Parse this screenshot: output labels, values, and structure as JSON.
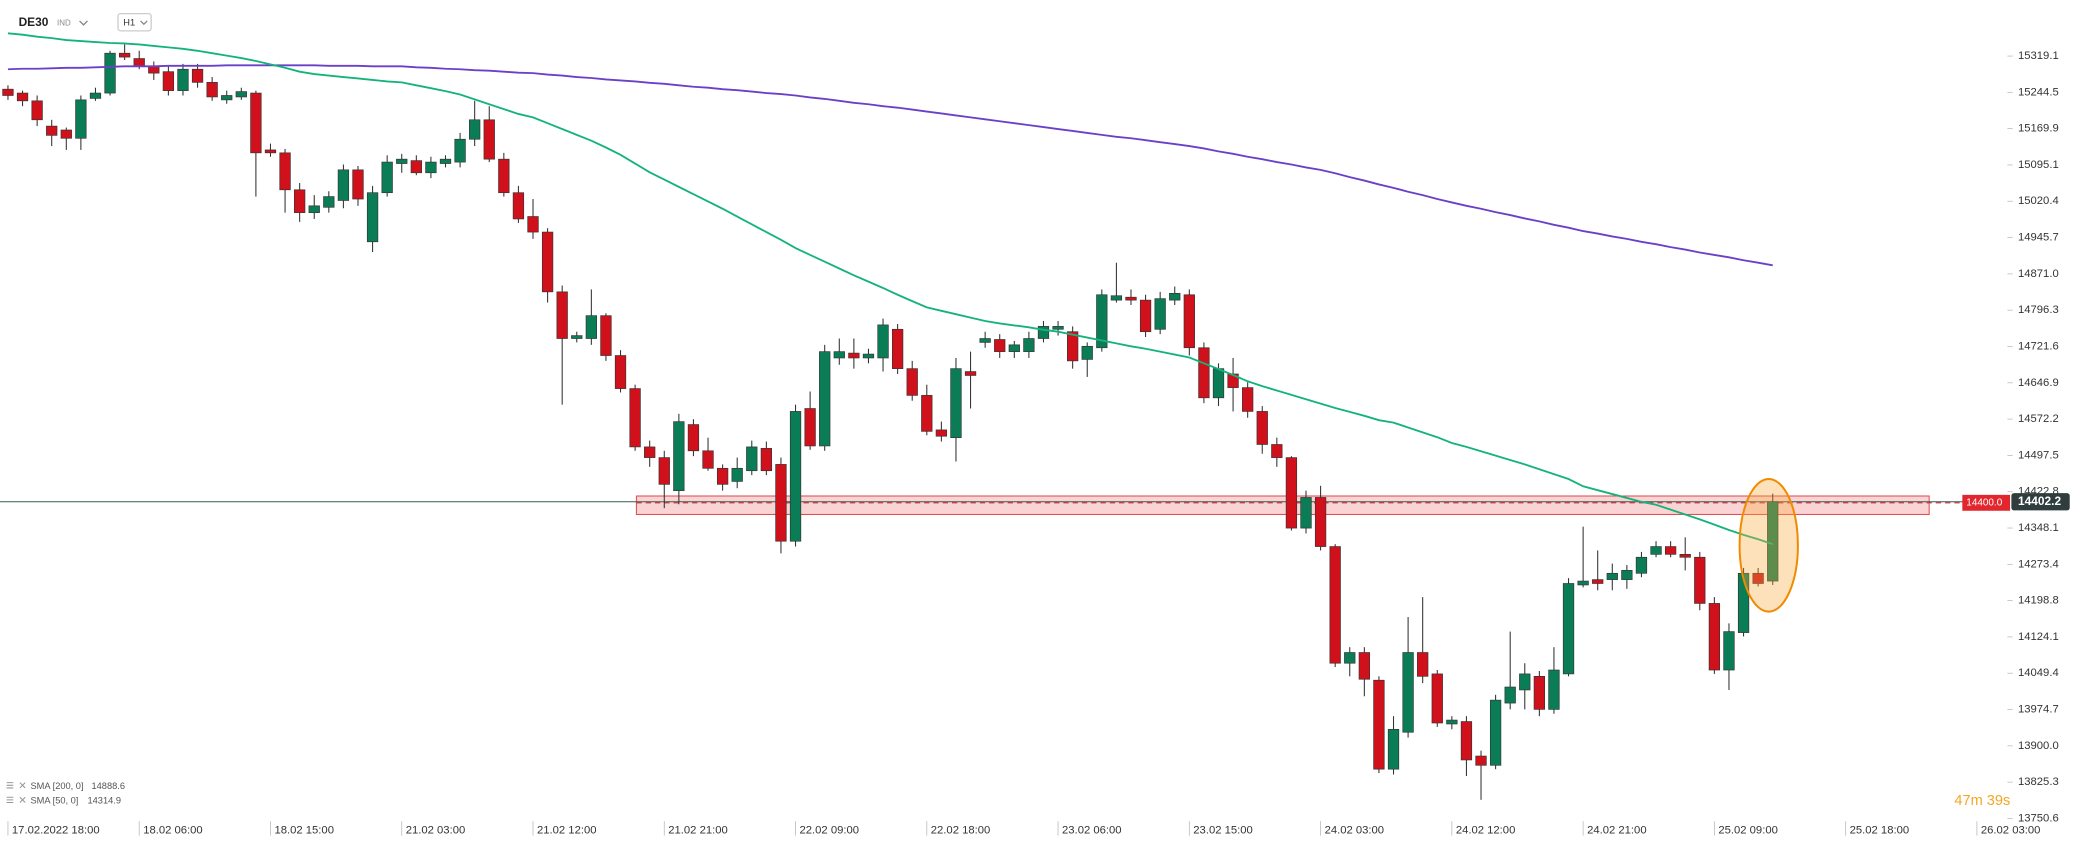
{
  "header": {
    "symbol": "DE30",
    "market": "IND",
    "interval": "H1"
  },
  "chart_data": {
    "type": "candlestick",
    "categories": [
      "17.02.2022 18:00",
      null,
      null,
      null,
      null,
      null,
      null,
      null,
      null,
      "18.02 06:00",
      null,
      null,
      null,
      null,
      null,
      null,
      null,
      null,
      "18.02 15:00",
      null,
      null,
      null,
      null,
      null,
      null,
      null,
      null,
      "21.02 03:00",
      null,
      null,
      null,
      null,
      null,
      null,
      null,
      null,
      "21.02 12:00",
      null,
      null,
      null,
      null,
      null,
      null,
      null,
      null,
      "21.02 21:00",
      null,
      null,
      null,
      null,
      null,
      null,
      null,
      null,
      "22.02 09:00",
      null,
      null,
      null,
      null,
      null,
      null,
      null,
      null,
      "22.02 18:00",
      null,
      null,
      null,
      null,
      null,
      null,
      null,
      null,
      "23.02 06:00",
      null,
      null,
      null,
      null,
      null,
      null,
      null,
      null,
      "23.02 15:00",
      null,
      null,
      null,
      null,
      null,
      null,
      null,
      null,
      "24.02 03:00",
      null,
      null,
      null,
      null,
      null,
      null,
      null,
      null,
      "24.02 12:00",
      null,
      null,
      null,
      null,
      null,
      null,
      null,
      null,
      "24.02 21:00",
      null,
      null,
      null,
      null,
      null,
      null,
      null,
      null,
      "25.02 09:00",
      null,
      null,
      null,
      null,
      null,
      null,
      null,
      null,
      "25.02 18:00",
      null,
      null,
      null,
      null,
      null,
      null,
      null,
      null,
      "26.02 03:00"
    ],
    "open": [
      15251,
      15243,
      15227,
      15175,
      15167,
      15150,
      15232,
      15243,
      15325,
      15314,
      15298,
      15287,
      15248,
      15292,
      15265,
      15229,
      15235,
      15243,
      15126,
      15120,
      15044,
      14997,
      15008,
      15022,
      15085,
      14937,
      15038,
      15098,
      15104,
      15079,
      15098,
      15101,
      15148,
      15188,
      15107,
      15038,
      14989,
      14957,
      14834,
      14738,
      14738,
      14785,
      14703,
      14635,
      14515,
      14493,
      14425,
      14561,
      14507,
      14471,
      14444,
      14466,
      14512,
      14479,
      14321,
      14594,
      14517,
      14698,
      14708,
      14698,
      14698,
      14757,
      14676,
      14621,
      14550,
      14534,
      14670,
      14730,
      14736,
      14711,
      14711,
      14738,
      14757,
      14752,
      14695,
      14719,
      14817,
      14823,
      14817,
      14757,
      14817,
      14828,
      14719,
      14616,
      14665,
      14637,
      14588,
      14520,
      14493,
      14348,
      14411,
      14310,
      14070,
      14092,
      14035,
      13852,
      13928,
      14092,
      14048,
      13945,
      13950,
      13879,
      13860,
      13988,
      14015,
      14043,
      13975,
      14048,
      14231,
      14242,
      14242,
      14242,
      14255,
      14294,
      14310,
      14294,
      14288,
      14193,
      14056,
      14133,
      14255,
      14239,
      null,
      null,
      null,
      null,
      null,
      null,
      null,
      null,
      null,
      null,
      null,
      null,
      null,
      null
    ],
    "high": [
      15259,
      15248,
      15238,
      15188,
      15172,
      15238,
      15254,
      15330,
      15347,
      15330,
      15308,
      15298,
      15303,
      15303,
      15276,
      15248,
      15254,
      15248,
      15139,
      15128,
      15058,
      15033,
      15041,
      15096,
      15093,
      15052,
      15115,
      15118,
      15115,
      15112,
      15115,
      15161,
      15227,
      15216,
      15120,
      15052,
      15025,
      14965,
      14847,
      14752,
      14839,
      14790,
      14714,
      14643,
      14528,
      14507,
      14583,
      14572,
      14534,
      14479,
      14493,
      14528,
      14526,
      14493,
      14602,
      14629,
      14725,
      14738,
      14738,
      14717,
      14779,
      14768,
      14692,
      14643,
      14567,
      14698,
      14711,
      14752,
      14747,
      14733,
      14752,
      14774,
      14774,
      14763,
      14730,
      14839,
      14894,
      14839,
      14828,
      14834,
      14845,
      14839,
      14730,
      14687,
      14698,
      14648,
      14599,
      14534,
      14496,
      14425,
      14435,
      14315,
      14103,
      14103,
      14043,
      13961,
      14165,
      14206,
      14056,
      13961,
      13961,
      13890,
      14005,
      14135,
      14070,
      14054,
      14103,
      14245,
      14351,
      14302,
      14275,
      14272,
      14299,
      14321,
      14321,
      14329,
      14299,
      14206,
      14152,
      14266,
      14266,
      14419,
      null,
      null,
      null,
      null,
      null,
      null,
      null,
      null,
      null,
      null,
      null,
      null,
      null,
      null
    ],
    "low": [
      15229,
      15216,
      15175,
      15134,
      15126,
      15126,
      15227,
      15238,
      15311,
      15292,
      15270,
      15238,
      15238,
      15254,
      15227,
      15221,
      15229,
      15030,
      15112,
      14997,
      14978,
      14984,
      14997,
      15006,
      15011,
      14916,
      15030,
      15079,
      15074,
      15068,
      15090,
      15090,
      15134,
      15101,
      15030,
      14976,
      14943,
      14812,
      14602,
      14730,
      14725,
      14692,
      14627,
      14507,
      14474,
      14389,
      14397,
      14496,
      14466,
      14425,
      14430,
      14457,
      14457,
      14296,
      14310,
      14509,
      14507,
      14684,
      14676,
      14687,
      14670,
      14665,
      14610,
      14539,
      14526,
      14485,
      14594,
      14719,
      14698,
      14698,
      14698,
      14730,
      14744,
      14676,
      14659,
      14711,
      14812,
      14807,
      14741,
      14747,
      14807,
      14703,
      14605,
      14599,
      14588,
      14575,
      14501,
      14474,
      14343,
      14337,
      14302,
      14062,
      14043,
      14002,
      13844,
      13841,
      13917,
      14029,
      13939,
      13934,
      13838,
      13789,
      13852,
      13975,
      13975,
      13961,
      13966,
      14043,
      14226,
      14220,
      14220,
      14223,
      14247,
      14288,
      14288,
      14261,
      14179,
      14048,
      14015,
      14125,
      14228,
      14231,
      null,
      null,
      null,
      null,
      null,
      null,
      null,
      null,
      null,
      null,
      null,
      null,
      null,
      null
    ],
    "close": [
      15238,
      15227,
      15188,
      15156,
      15150,
      15229,
      15243,
      15325,
      15317,
      15298,
      15284,
      15248,
      15292,
      15265,
      15235,
      15238,
      15246,
      15120,
      15120,
      15044,
      14997,
      15011,
      15030,
      15085,
      15025,
      15038,
      15101,
      15107,
      15079,
      15101,
      15107,
      15148,
      15188,
      15107,
      15038,
      14984,
      14957,
      14834,
      14738,
      14744,
      14785,
      14703,
      14635,
      14515,
      14493,
      14438,
      14567,
      14507,
      14471,
      14438,
      14471,
      14515,
      14466,
      14321,
      14588,
      14517,
      14711,
      14711,
      14698,
      14706,
      14766,
      14676,
      14621,
      14547,
      14537,
      14676,
      14662,
      14738,
      14711,
      14725,
      14738,
      14763,
      14763,
      14692,
      14722,
      14828,
      14826,
      14817,
      14752,
      14820,
      14831,
      14719,
      14616,
      14676,
      14637,
      14588,
      14520,
      14493,
      14348,
      14411,
      14310,
      14070,
      14092,
      14037,
      13852,
      13934,
      14092,
      14043,
      13947,
      13953,
      13871,
      13860,
      13994,
      14021,
      14048,
      13975,
      14056,
      14234,
      14239,
      14234,
      14255,
      14261,
      14288,
      14310,
      14294,
      14288,
      14193,
      14056,
      14135,
      14255,
      14234,
      14402.2,
      null,
      null,
      null,
      null,
      null,
      null,
      null,
      null,
      null,
      null,
      null,
      null,
      null,
      null
    ],
    "up_color": "#0b7d56",
    "down_color": "#d0101a",
    "series": [
      {
        "name": "SMA [200, 0]",
        "color": "#6a40c8",
        "values": [
          15292,
          15293,
          15293,
          15294,
          15295,
          15295,
          15296,
          15297,
          15298,
          15298,
          15298,
          15299,
          15299,
          15299,
          15299,
          15300,
          15300,
          15300,
          15300,
          15300,
          15300,
          15300,
          15299,
          15299,
          15299,
          15298,
          15298,
          15298,
          15296,
          15295,
          15293,
          15292,
          15290,
          15289,
          15287,
          15285,
          15284,
          15281,
          15279,
          15276,
          15274,
          15271,
          15269,
          15267,
          15264,
          15262,
          15259,
          15256,
          15254,
          15251,
          15249,
          15246,
          15243,
          15241,
          15238,
          15234,
          15231,
          15227,
          15223,
          15220,
          15216,
          15213,
          15209,
          15205,
          15201,
          15197,
          15193,
          15189,
          15185,
          15181,
          15177,
          15173,
          15169,
          15165,
          15161,
          15157,
          15153,
          15150,
          15146,
          15142,
          15138,
          15134,
          15129,
          15123,
          15118,
          15112,
          15107,
          15101,
          15096,
          15090,
          15085,
          15078,
          15070,
          15063,
          15055,
          15048,
          15040,
          15033,
          15025,
          15018,
          15011,
          15005,
          14998,
          14992,
          14985,
          14979,
          14972,
          14966,
          14959,
          14954,
          14948,
          14943,
          14937,
          14932,
          14926,
          14921,
          14915,
          14910,
          14905,
          14899,
          14894,
          14888.6,
          null,
          null,
          null,
          null,
          null,
          null,
          null,
          null,
          null,
          null,
          null,
          null,
          null,
          null
        ]
      },
      {
        "name": "SMA [50, 0]",
        "color": "#14b37c",
        "values": [
          15366,
          15363,
          15359,
          15356,
          15352,
          15350,
          15348,
          15346,
          15345,
          15343,
          15340,
          15337,
          15334,
          15330,
          15325,
          15320,
          15315,
          15309,
          15302,
          15295,
          15287,
          15282,
          15279,
          15276,
          15273,
          15270,
          15267,
          15265,
          15259,
          15253,
          15247,
          15240,
          15230,
          15220,
          15210,
          15200,
          15193,
          15181,
          15169,
          15157,
          15145,
          15131,
          15116,
          15098,
          15080,
          15065,
          15050,
          15035,
          15020,
          15005,
          14989,
          14973,
          14957,
          14941,
          14924,
          14910,
          14896,
          14882,
          14868,
          14855,
          14842,
          14828,
          14815,
          14802,
          14795,
          14788,
          14781,
          14774,
          14769,
          14765,
          14761,
          14756,
          14752,
          14746,
          14740,
          14734,
          14728,
          14722,
          14717,
          14711,
          14705,
          14699,
          14687,
          14675,
          14663,
          14650,
          14640,
          14631,
          14622,
          14613,
          14604,
          14595,
          14587,
          14579,
          14570,
          14565,
          14555,
          14545,
          14535,
          14523,
          14515,
          14506,
          14497,
          14488,
          14479,
          14469,
          14459,
          14449,
          14434,
          14426,
          14418,
          14410,
          14402,
          14396,
          14386,
          14376,
          14366,
          14355,
          14344,
          14334,
          14325,
          14314.9,
          null,
          null,
          null,
          null,
          null,
          null,
          null,
          null,
          null,
          null,
          null,
          null,
          null,
          null
        ]
      }
    ],
    "ylim": [
      13698.8,
      15433.7
    ],
    "yticks": [
      15319.1,
      15244.5,
      15169.9,
      15095.1,
      15020.4,
      14945.7,
      {
        "value": 14871,
        "label": "14871.0"
      },
      14796.3,
      14721.6,
      14646.9,
      14572.2,
      14497.5,
      14422.8,
      14348.1,
      14273.4,
      14198.8,
      14124.1,
      14049.4,
      13974.7,
      {
        "value": 13900,
        "label": "13900.0"
      },
      13825.3,
      13750.6
    ],
    "grid": false,
    "level": {
      "value": 14400,
      "label": "14400.0"
    },
    "zone": [
      14376,
      14414
    ],
    "countdown": "47m 39s"
  }
}
